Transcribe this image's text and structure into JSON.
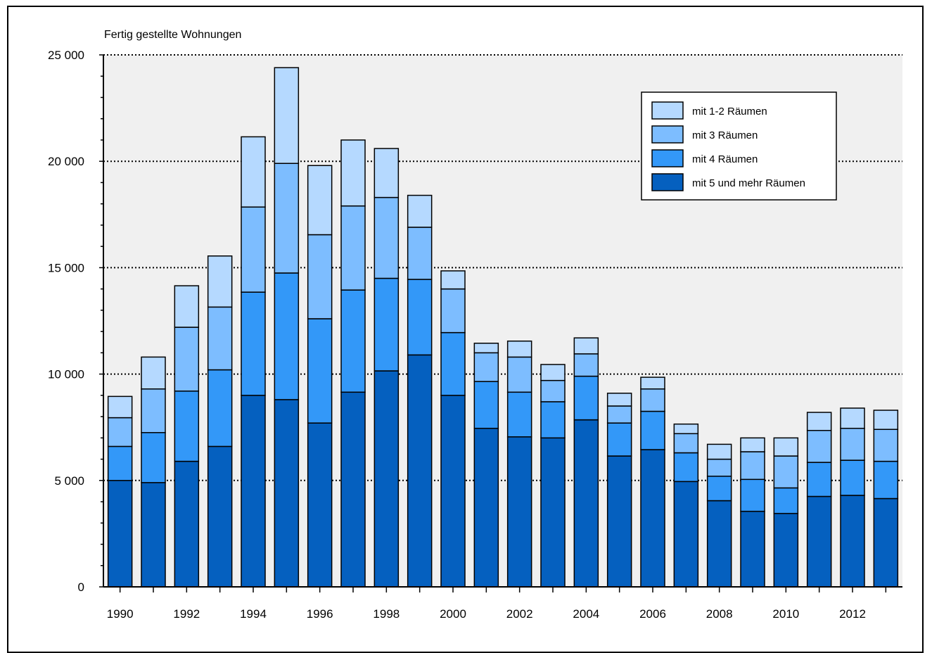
{
  "chart_data": {
    "type": "bar",
    "stacked": true,
    "ylabel": "Fertig gestellte Wohnungen",
    "ylim": [
      0,
      25000
    ],
    "yticks": [
      0,
      5000,
      10000,
      15000,
      20000,
      25000
    ],
    "ytick_labels": [
      "0",
      "5 000",
      "10 000",
      "15 000",
      "20 000",
      "25 000"
    ],
    "grid": "horizontal dotted",
    "legend_position": "top-right",
    "categories": [
      "1990",
      "1991",
      "1992",
      "1993",
      "1994",
      "1995",
      "1996",
      "1997",
      "1998",
      "1999",
      "2000",
      "2001",
      "2002",
      "2003",
      "2004",
      "2005",
      "2006",
      "2007",
      "2008",
      "2009",
      "2010",
      "2011",
      "2012",
      "2013"
    ],
    "xtick_labels": [
      "1990",
      "",
      "1992",
      "",
      "1994",
      "",
      "1996",
      "",
      "1998",
      "",
      "2000",
      "",
      "2002",
      "",
      "2004",
      "",
      "2006",
      "",
      "2008",
      "",
      "2010",
      "",
      "2012",
      ""
    ],
    "series": [
      {
        "name": "mit 5 und mehr Räumen",
        "color": "#0560bf",
        "values": [
          5000,
          4900,
          5900,
          6600,
          9000,
          8800,
          7700,
          9150,
          10150,
          10900,
          9000,
          7450,
          7050,
          7000,
          7850,
          6150,
          6450,
          4950,
          4050,
          3550,
          3450,
          4250,
          4300,
          4150
        ]
      },
      {
        "name": "mit 4 Räumen",
        "color": "#3398f8",
        "values": [
          1600,
          2350,
          3300,
          3600,
          4850,
          5950,
          4900,
          4800,
          4350,
          3550,
          2950,
          2200,
          2100,
          1700,
          2050,
          1550,
          1800,
          1350,
          1150,
          1500,
          1200,
          1600,
          1650,
          1750
        ]
      },
      {
        "name": "mit 3 Räumen",
        "color": "#7dbdff",
        "values": [
          1350,
          2050,
          3000,
          2950,
          4000,
          5150,
          3950,
          3950,
          3800,
          2450,
          2050,
          1350,
          1650,
          1000,
          1050,
          800,
          1050,
          900,
          800,
          1300,
          1500,
          1500,
          1500,
          1500
        ]
      },
      {
        "name": "mit 1-2 Räumen",
        "color": "#b5d9ff",
        "values": [
          1000,
          1500,
          1950,
          2400,
          3300,
          4500,
          3250,
          3100,
          2300,
          1500,
          850,
          450,
          750,
          750,
          750,
          600,
          550,
          450,
          700,
          650,
          850,
          850,
          950,
          900
        ]
      }
    ]
  }
}
